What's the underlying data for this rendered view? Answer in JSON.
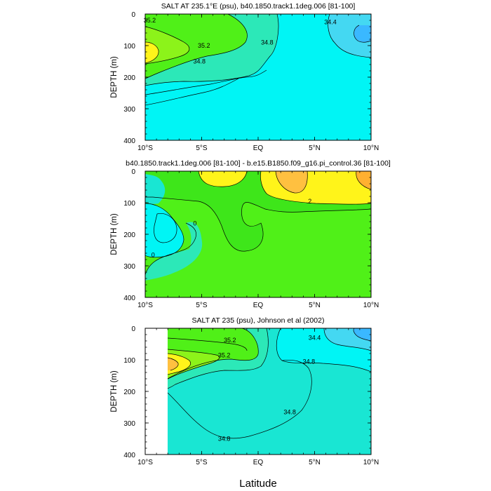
{
  "figure": {
    "x_axis_label": "Latitude",
    "colors": {
      "cyan": "#00f5f5",
      "aqua": "#19e6d3",
      "teal": "#2ce8b8",
      "sky": "#44d8f2",
      "blue": "#3ab8ff",
      "green": "#50f018",
      "green_dark": "#3ee61a",
      "lime": "#8cf31a",
      "yellow": "#fff41a",
      "orange": "#ffc040",
      "orange_dark": "#ffb030",
      "line": "#000000"
    }
  },
  "chart_data": [
    {
      "type": "contour",
      "title": "SALT AT 235.1°E (psu), b40.1850.track1.1deg.006 [81-100]",
      "xlabel": "",
      "ylabel": "DEPTH (m)",
      "xlim": [
        -10,
        10
      ],
      "ylim": [
        400,
        0
      ],
      "x_ticks": [
        -10,
        -5,
        0,
        5,
        10
      ],
      "x_tick_labels": [
        "10°S",
        "5°S",
        "EQ",
        "5°N",
        "10°N"
      ],
      "y_ticks": [
        0,
        100,
        200,
        300,
        400
      ],
      "y_tick_labels": [
        "0",
        "100",
        "200",
        "300",
        "400"
      ],
      "contour_labels": [
        {
          "text": "35.2",
          "x": -9.6,
          "y": 20
        },
        {
          "text": "35.2",
          "x": -4.8,
          "y": 100
        },
        {
          "text": "34.8",
          "x": -5.2,
          "y": 150
        },
        {
          "text": "34.8",
          "x": 0.8,
          "y": 90
        },
        {
          "text": "34.4",
          "x": 6.4,
          "y": 25
        }
      ]
    },
    {
      "type": "contour",
      "title": "b40.1850.track1.1deg.006 [81-100] - b.e15.B1850.f09_g16.pi_control.36 [81-100]",
      "xlabel": "",
      "ylabel": "DEPTH (m)",
      "xlim": [
        -10,
        10
      ],
      "ylim": [
        400,
        0
      ],
      "x_ticks": [
        -10,
        -5,
        0,
        5,
        10
      ],
      "x_tick_labels": [
        "10°S",
        "5°S",
        "EQ",
        "5°N",
        "10°N"
      ],
      "y_ticks": [
        0,
        100,
        200,
        300,
        400
      ],
      "y_tick_labels": [
        "0",
        "100",
        "200",
        "300",
        "400"
      ],
      "contour_labels": [
        {
          "text": "0",
          "x": -5.6,
          "y": 165
        },
        {
          "text": "0",
          "x": -9.3,
          "y": 265
        },
        {
          "text": ".2",
          "x": 4.5,
          "y": 95
        }
      ]
    },
    {
      "type": "contour",
      "title": "SALT AT 235 (psu), Johnson et al (2002)",
      "xlabel": "Latitude",
      "ylabel": "DEPTH (m)",
      "xlim": [
        -10,
        10
      ],
      "ylim": [
        400,
        0
      ],
      "data_x_range": [
        -8,
        10
      ],
      "x_ticks": [
        -10,
        -5,
        0,
        5,
        10
      ],
      "x_tick_labels": [
        "10°S",
        "5°S",
        "EQ",
        "5°N",
        "10°N"
      ],
      "y_ticks": [
        0,
        100,
        200,
        300,
        400
      ],
      "y_tick_labels": [
        "0",
        "100",
        "200",
        "300",
        "400"
      ],
      "contour_labels": [
        {
          "text": "35.2",
          "x": -2.5,
          "y": 38
        },
        {
          "text": "35.2",
          "x": -3.0,
          "y": 85
        },
        {
          "text": "34.4",
          "x": 5.0,
          "y": 30
        },
        {
          "text": "34.8",
          "x": 4.5,
          "y": 105
        },
        {
          "text": "34.8",
          "x": 2.8,
          "y": 265
        },
        {
          "text": "34.8",
          "x": -3.0,
          "y": 350
        }
      ]
    }
  ]
}
